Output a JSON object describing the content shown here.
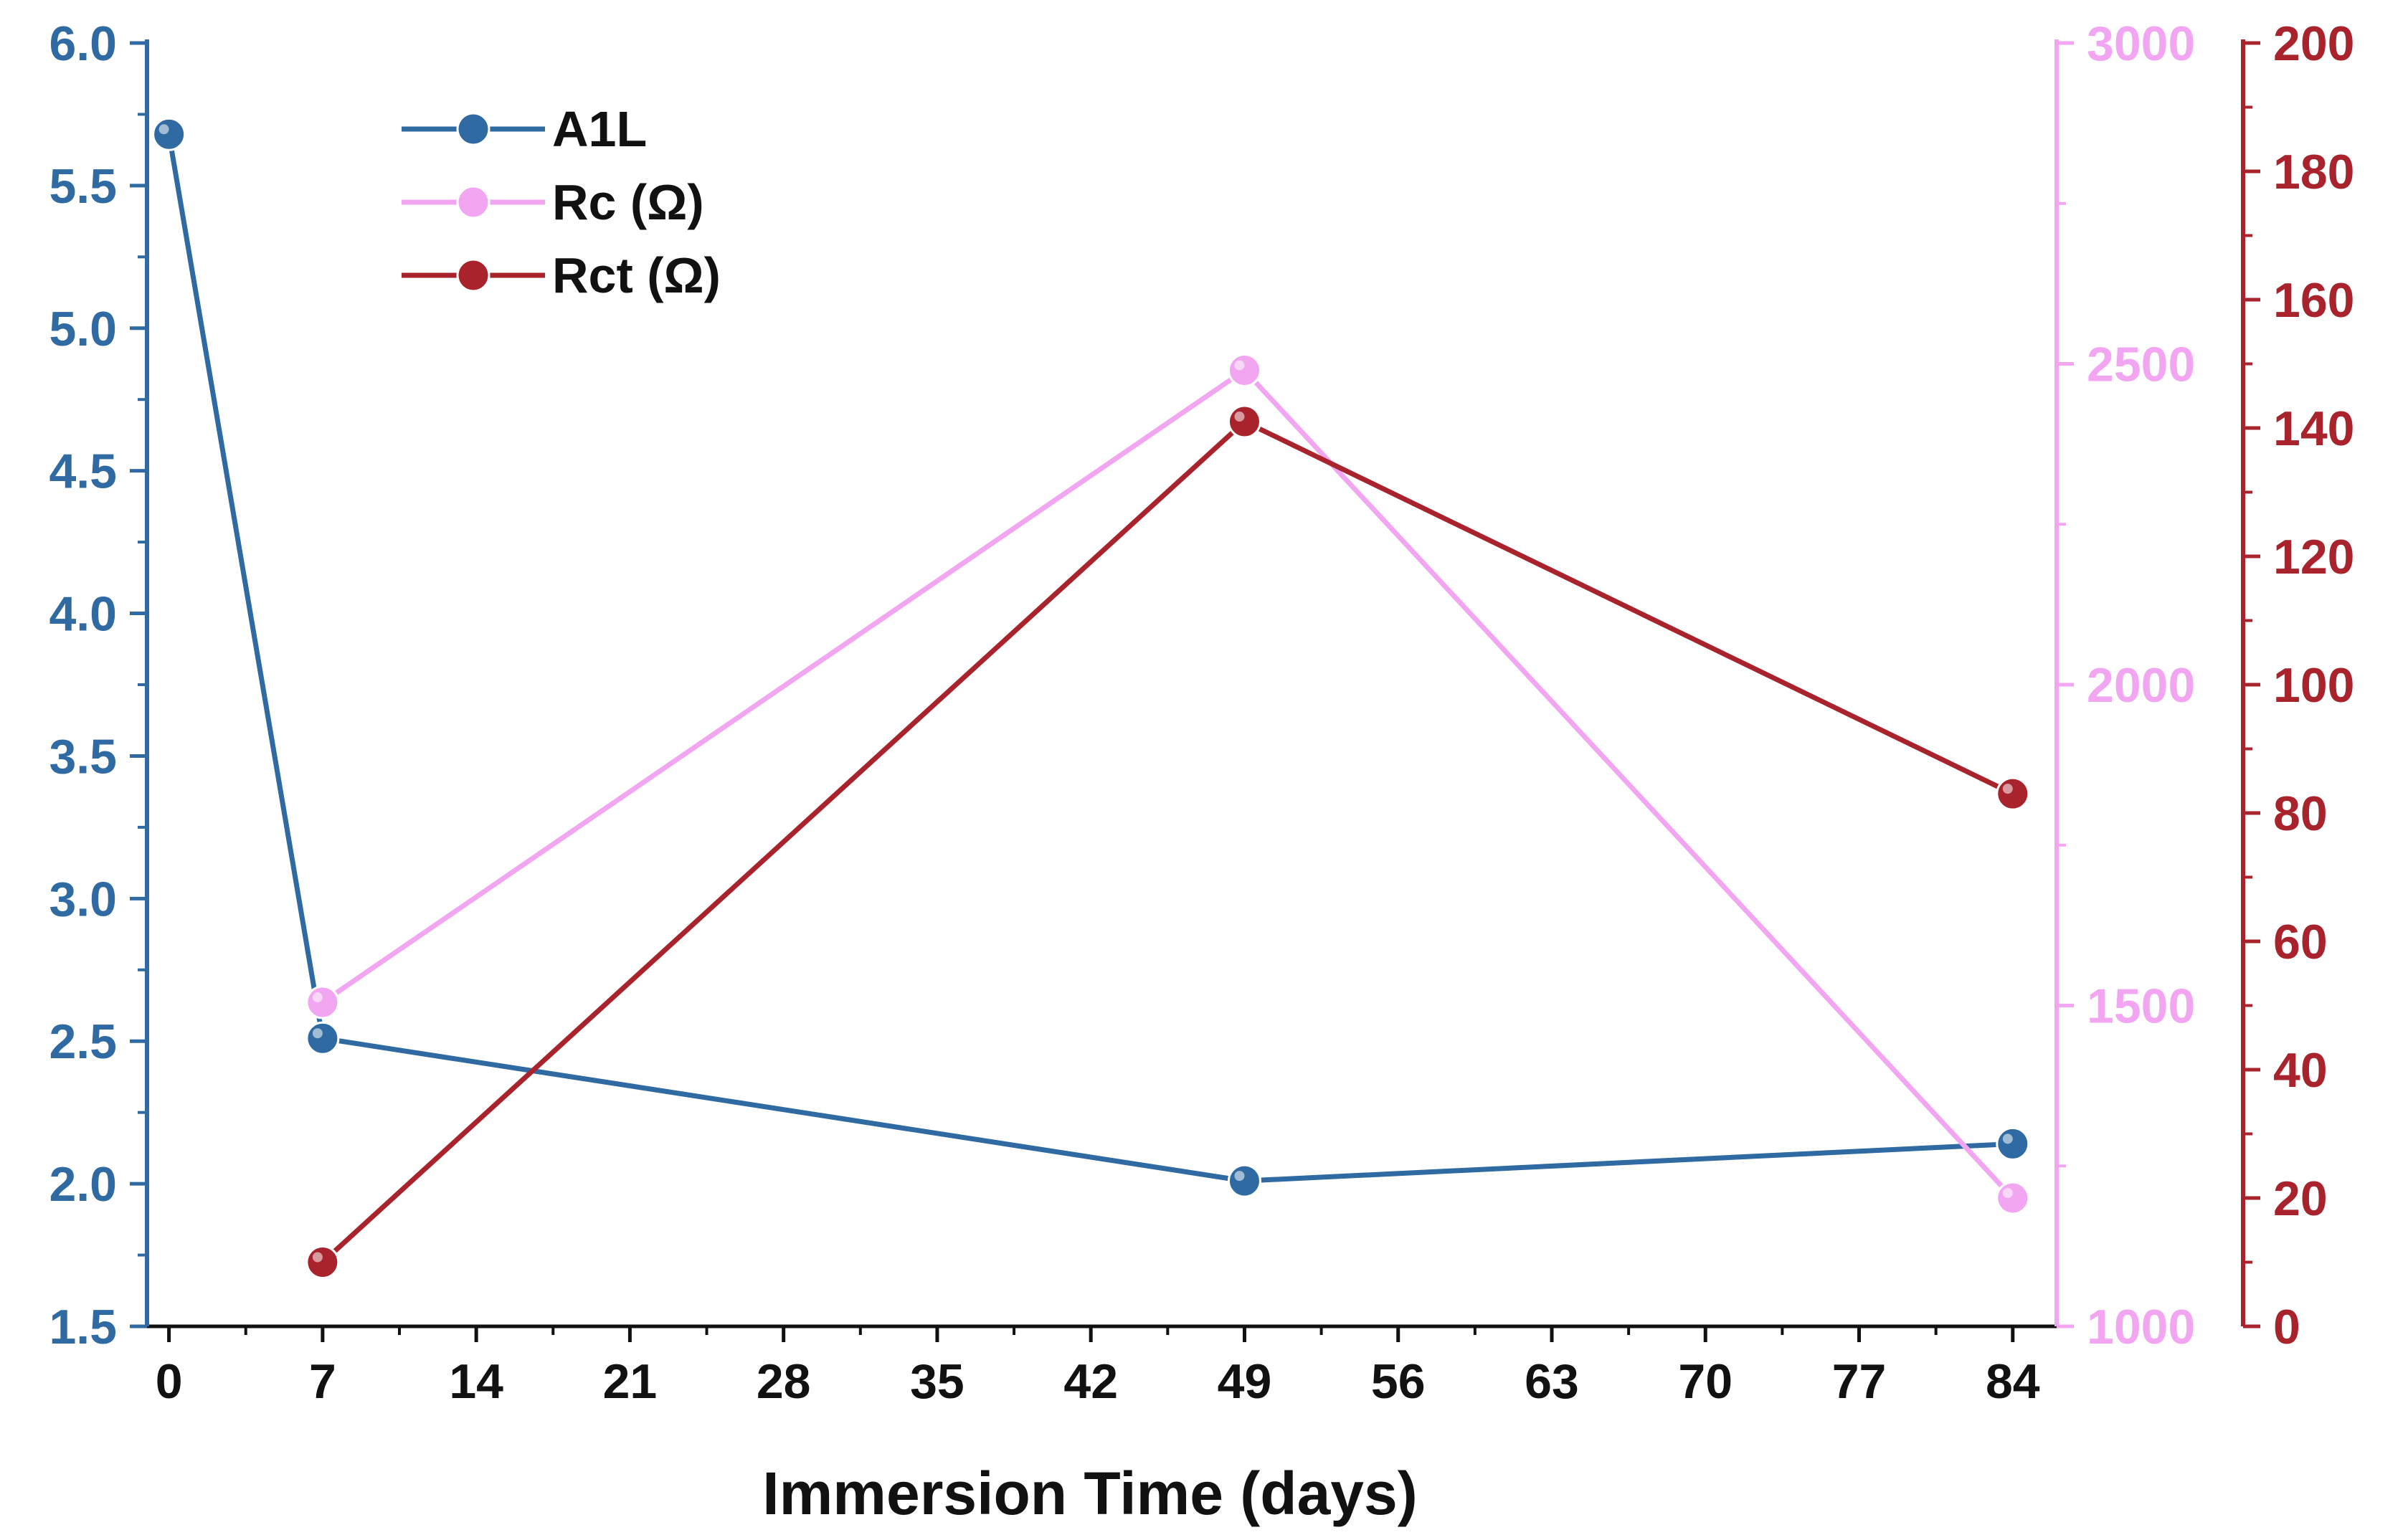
{
  "chart_data": {
    "type": "line",
    "xlabel": "Immersion Time (days)",
    "xlim": [
      -1,
      86
    ],
    "xticks": [
      0,
      7,
      14,
      21,
      28,
      35,
      42,
      49,
      56,
      63,
      70,
      77,
      84
    ],
    "axes": [
      {
        "id": "left",
        "ylim": [
          1.5,
          6.0
        ],
        "ticks": [
          "1.5",
          "2.0",
          "2.5",
          "3.0",
          "3.5",
          "4.0",
          "4.5",
          "5.0",
          "5.5",
          "6.0"
        ],
        "color": "#2f6aa3"
      },
      {
        "id": "right1",
        "ylim": [
          1000,
          3000
        ],
        "ticks": [
          "1000",
          "1500",
          "2000",
          "2500",
          "3000"
        ],
        "color": "#f2a6f2"
      },
      {
        "id": "right2",
        "ylim": [
          0,
          200
        ],
        "ticks": [
          "0",
          "20",
          "40",
          "60",
          "80",
          "100",
          "120",
          "140",
          "160",
          "180",
          "200"
        ],
        "color": "#a8232b"
      }
    ],
    "series": [
      {
        "name": "A1L",
        "axis": "left",
        "color": "#2f6aa3",
        "x": [
          0,
          7,
          49,
          84
        ],
        "values": [
          5.68,
          2.51,
          2.01,
          2.14
        ]
      },
      {
        "name": "Rc (Ω)",
        "axis": "right1",
        "color": "#f2a6f2",
        "x": [
          7,
          49,
          84
        ],
        "values": [
          1505,
          2490,
          1200
        ]
      },
      {
        "name": "Rct (Ω)",
        "axis": "right2",
        "color": "#a8232b",
        "x": [
          7,
          49,
          84
        ],
        "values": [
          10,
          141,
          83
        ]
      }
    ],
    "legend_position": "top-left"
  }
}
